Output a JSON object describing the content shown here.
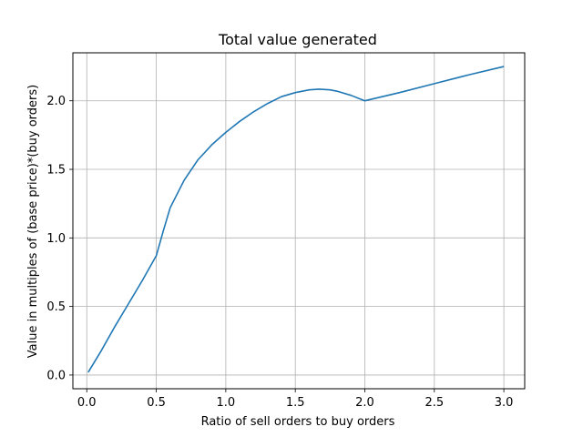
{
  "chart_data": {
    "type": "line",
    "title": "Total value generated",
    "xlabel": "Ratio of sell orders to buy orders",
    "ylabel": "Value in multiples of (base price)*(buy orders)",
    "xlim": [
      -0.1,
      3.15
    ],
    "ylim": [
      -0.1,
      2.35
    ],
    "xticks": [
      "0.0",
      "0.5",
      "1.0",
      "1.5",
      "2.0",
      "2.5",
      "3.0"
    ],
    "yticks": [
      "0.0",
      "0.5",
      "1.0",
      "1.5",
      "2.0"
    ],
    "grid": true,
    "series": [
      {
        "color": "#1f77b4",
        "x": [
          0.01,
          0.1,
          0.2,
          0.3,
          0.4,
          0.5,
          0.55,
          0.6,
          0.7,
          0.8,
          0.9,
          1.0,
          1.1,
          1.2,
          1.3,
          1.4,
          1.5,
          1.6,
          1.67,
          1.75,
          1.8,
          1.9,
          2.0,
          2.25,
          2.5,
          2.75,
          3.0
        ],
        "y": [
          0.02,
          0.17,
          0.35,
          0.52,
          0.69,
          0.87,
          1.05,
          1.22,
          1.42,
          1.57,
          1.68,
          1.77,
          1.85,
          1.92,
          1.98,
          2.03,
          2.06,
          2.08,
          2.085,
          2.08,
          2.07,
          2.04,
          2.0,
          2.06,
          2.125,
          2.19,
          2.25
        ]
      }
    ]
  }
}
